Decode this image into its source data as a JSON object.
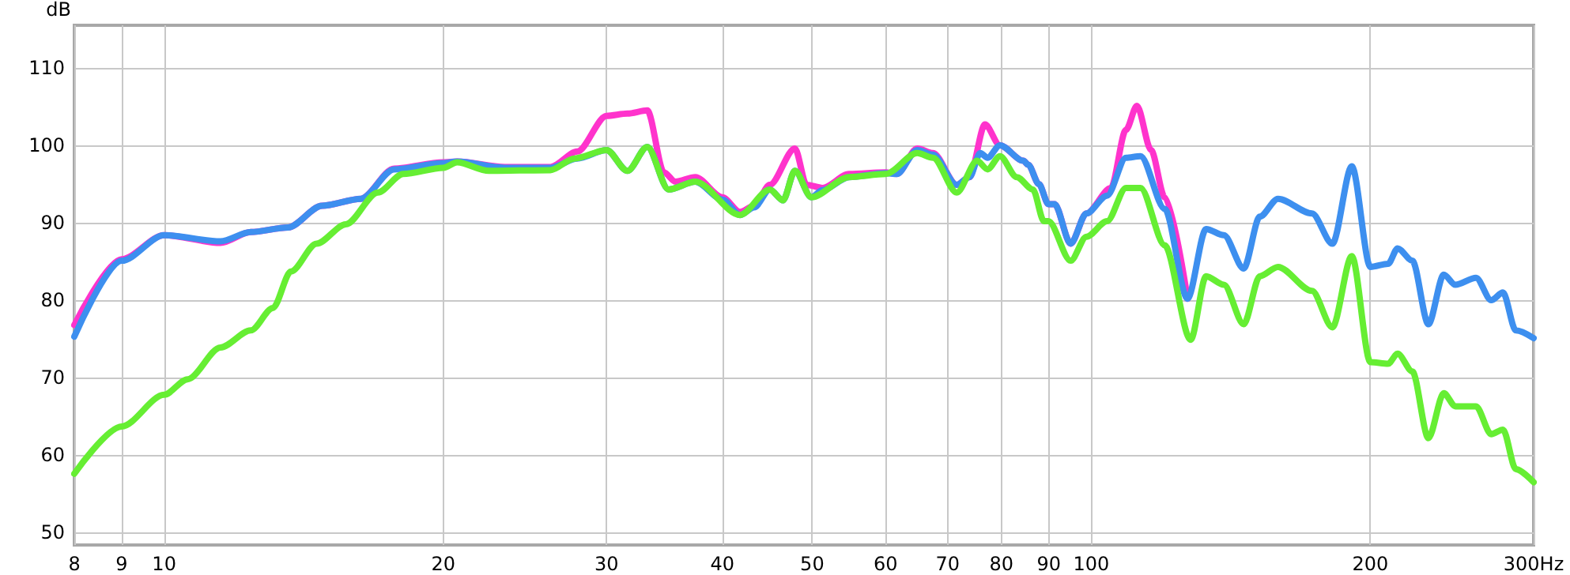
{
  "chart_data": {
    "type": "line",
    "ylabel": "dB",
    "log": "x",
    "grid": true,
    "marker": "none",
    "line_style": "solid",
    "xlim": [
      8,
      300
    ],
    "xticks": [
      8,
      9,
      10,
      20,
      30,
      40,
      50,
      60,
      70,
      80,
      90,
      100,
      200,
      {
        "value": 300,
        "label": "300Hz"
      }
    ],
    "ylim": [
      48.4,
      115.5
    ],
    "yticks": [
      50,
      60,
      70,
      80,
      90,
      100,
      110
    ],
    "series": [
      {
        "color": "#ff33cc",
        "x": [
          8,
          9,
          10,
          11.5,
          12.4,
          13.6,
          14.8,
          16.3,
          17.7,
          20,
          20.7,
          23.3,
          26.1,
          27.9,
          30,
          31.6,
          33.2,
          34.6,
          35.6,
          37.4,
          40,
          41.8,
          43.3,
          45,
          47.9,
          49.3,
          51.3,
          54.8,
          60,
          61.7,
          64.9,
          67.5,
          71.6,
          73.9,
          76.8,
          79.7,
          84.5,
          85.5,
          87.8,
          89.9,
          91.3,
          95,
          98.8,
          105,
          109,
          112,
          116,
          120,
          127
        ],
        "values": [
          76.8,
          85.3,
          88.4,
          87.4,
          88.8,
          89.4,
          92.2,
          93.1,
          97.0,
          97.8,
          97.9,
          97.2,
          97.2,
          99.2,
          103.8,
          104.1,
          104.5,
          96.5,
          95.3,
          95.9,
          93.3,
          91.4,
          92.2,
          94.9,
          99.6,
          94.9,
          94.5,
          96.3,
          96.5,
          96.3,
          99.6,
          99.0,
          94.9,
          95.9,
          102.7,
          100.0,
          98.0,
          97.5,
          95.0,
          92.4,
          92.4,
          87.3,
          91.2,
          94.5,
          102.0,
          105.1,
          99.4,
          93.3,
          80.2
        ]
      },
      {
        "color": "#3d8fef",
        "x": [
          8,
          9,
          10,
          11.5,
          12.4,
          13.6,
          14.8,
          16.3,
          17.7,
          20,
          20.7,
          23.3,
          26.1,
          27.9,
          30,
          31.6,
          33.2,
          35,
          37.4,
          40,
          41.8,
          43.3,
          45,
          46.5,
          47.9,
          49.9,
          51.3,
          54.8,
          60,
          61.7,
          64.9,
          67.5,
          71.6,
          73.9,
          75.9,
          77.3,
          79.7,
          84.5,
          85.5,
          87.8,
          89.9,
          91.3,
          95,
          98.8,
          104,
          109,
          113,
          120,
          127,
          133,
          139,
          146,
          152,
          159,
          173,
          182,
          191,
          200,
          209,
          214,
          222,
          231,
          240,
          247,
          260,
          270,
          278,
          287,
          300
        ],
        "values": [
          75.3,
          85.1,
          88.4,
          87.6,
          88.8,
          89.4,
          92.2,
          93.1,
          96.9,
          97.7,
          97.9,
          97.1,
          97.1,
          98.3,
          99.4,
          96.7,
          99.8,
          94.3,
          95.3,
          93.0,
          91.0,
          92.0,
          94.3,
          92.9,
          96.7,
          93.3,
          94.2,
          95.9,
          96.4,
          96.3,
          99.4,
          98.8,
          94.9,
          95.9,
          99.0,
          98.4,
          100.0,
          98.0,
          97.5,
          95.0,
          92.4,
          92.4,
          87.3,
          91.2,
          93.5,
          98.4,
          98.6,
          91.8,
          80.2,
          89.2,
          88.4,
          84.1,
          90.8,
          93.1,
          91.2,
          87.3,
          97.3,
          84.3,
          84.7,
          86.7,
          85.1,
          76.9,
          83.3,
          82.0,
          82.9,
          80.0,
          81.0,
          76.1,
          75.1
        ]
      },
      {
        "color": "#66ee33",
        "x": [
          8,
          9,
          10,
          10.6,
          11.5,
          12.4,
          13.1,
          13.7,
          14.6,
          15.7,
          17.0,
          18.1,
          20,
          20.7,
          22.4,
          26.1,
          27.7,
          30,
          31.6,
          33.2,
          35,
          37.4,
          41.8,
          45,
          46.5,
          47.9,
          49.9,
          54.8,
          60,
          64.9,
          67.5,
          71.6,
          75.3,
          77.3,
          79.7,
          83.1,
          86.5,
          88.9,
          89.9,
          95,
          98.8,
          104,
          109,
          113,
          120,
          128,
          133,
          139,
          146,
          152,
          159,
          173,
          182,
          191,
          200,
          209,
          214,
          222,
          231,
          240,
          247,
          260,
          270,
          278,
          287,
          300
        ],
        "values": [
          57.6,
          63.7,
          67.8,
          69.8,
          73.9,
          76.1,
          79.0,
          83.7,
          87.3,
          89.8,
          93.9,
          96.3,
          97.1,
          97.8,
          96.7,
          96.8,
          98.3,
          99.4,
          96.7,
          99.8,
          94.3,
          95.3,
          91.0,
          94.3,
          92.9,
          96.7,
          93.3,
          95.9,
          96.3,
          99.0,
          98.4,
          93.9,
          98.0,
          96.9,
          98.6,
          95.9,
          94.3,
          90.2,
          90.2,
          85.1,
          88.2,
          90.2,
          94.5,
          94.5,
          87.1,
          74.9,
          83.1,
          82.0,
          76.9,
          83.1,
          84.3,
          81.2,
          76.5,
          85.7,
          72.0,
          71.8,
          73.1,
          70.8,
          62.2,
          68.0,
          66.3,
          66.3,
          62.7,
          63.3,
          58.2,
          56.5
        ]
      }
    ]
  }
}
